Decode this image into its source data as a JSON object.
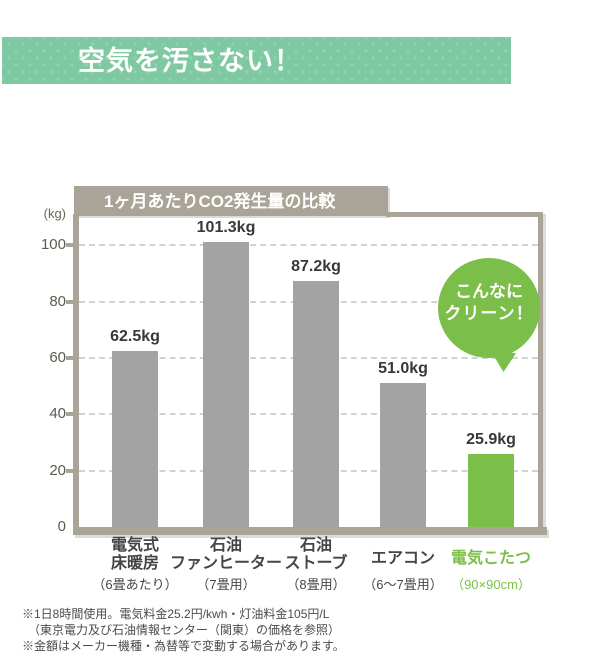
{
  "header": {
    "title": "空気を汚さない！",
    "banner_color": "#7ec9a1",
    "banner_dot_color": "#93d3af"
  },
  "chart_data": {
    "type": "bar",
    "title": "1ヶ月あたりCO2発生量の比較",
    "ylabel": "(kg)",
    "xlabel": "",
    "ylim": [
      0,
      110
    ],
    "yticks": [
      0,
      20,
      40,
      60,
      80,
      100
    ],
    "grid": "horizontal dashed",
    "legend": "none",
    "categories": [
      "電気式床暖房",
      "石油ファンヒーター",
      "石油ストーブ",
      "エアコン",
      "電気こたつ"
    ],
    "category_name_lines": [
      [
        "電気式",
        "床暖房"
      ],
      [
        "石油",
        "ファンヒーター"
      ],
      [
        "石油",
        "ストーブ"
      ],
      [
        "エアコン"
      ],
      [
        "電気こたつ"
      ]
    ],
    "category_sublabels": [
      "（6畳あたり）",
      "（7畳用）",
      "（8畳用）",
      "（6～7畳用）",
      "（90×90cm）"
    ],
    "values": [
      62.5,
      101.3,
      87.2,
      51.0,
      25.9
    ],
    "value_labels": [
      "62.5kg",
      "101.3kg",
      "87.2kg",
      "51.0kg",
      "25.9kg"
    ],
    "bar_colors": [
      "#a3a3a3",
      "#a3a3a3",
      "#a3a3a3",
      "#a3a3a3",
      "#7cbe4a"
    ],
    "highlight_index": 4,
    "frame_color": "#aaa498",
    "title_text_color": "#ffffff"
  },
  "annotation": {
    "bubble_lines": [
      "こんなに",
      "クリーン！"
    ],
    "bubble_color": "#7cbe4a",
    "bubble_text_color": "#ffffff"
  },
  "footnotes": [
    "※1日8時間使用。電気料金25.2円/kwh・灯油料金105円/L",
    "（東京電力及び石油情報センター（関東）の価格を参照）",
    "※金額はメーカー機種・為替等で変動する場合があります。"
  ],
  "colors": {
    "header_green": "#7ec9a1",
    "accent_green": "#7cbe4a",
    "bar_gray": "#a3a3a3",
    "frame_taupe": "#aaa498",
    "grid_gray": "#d2d2d2",
    "text_dark": "#454545"
  }
}
